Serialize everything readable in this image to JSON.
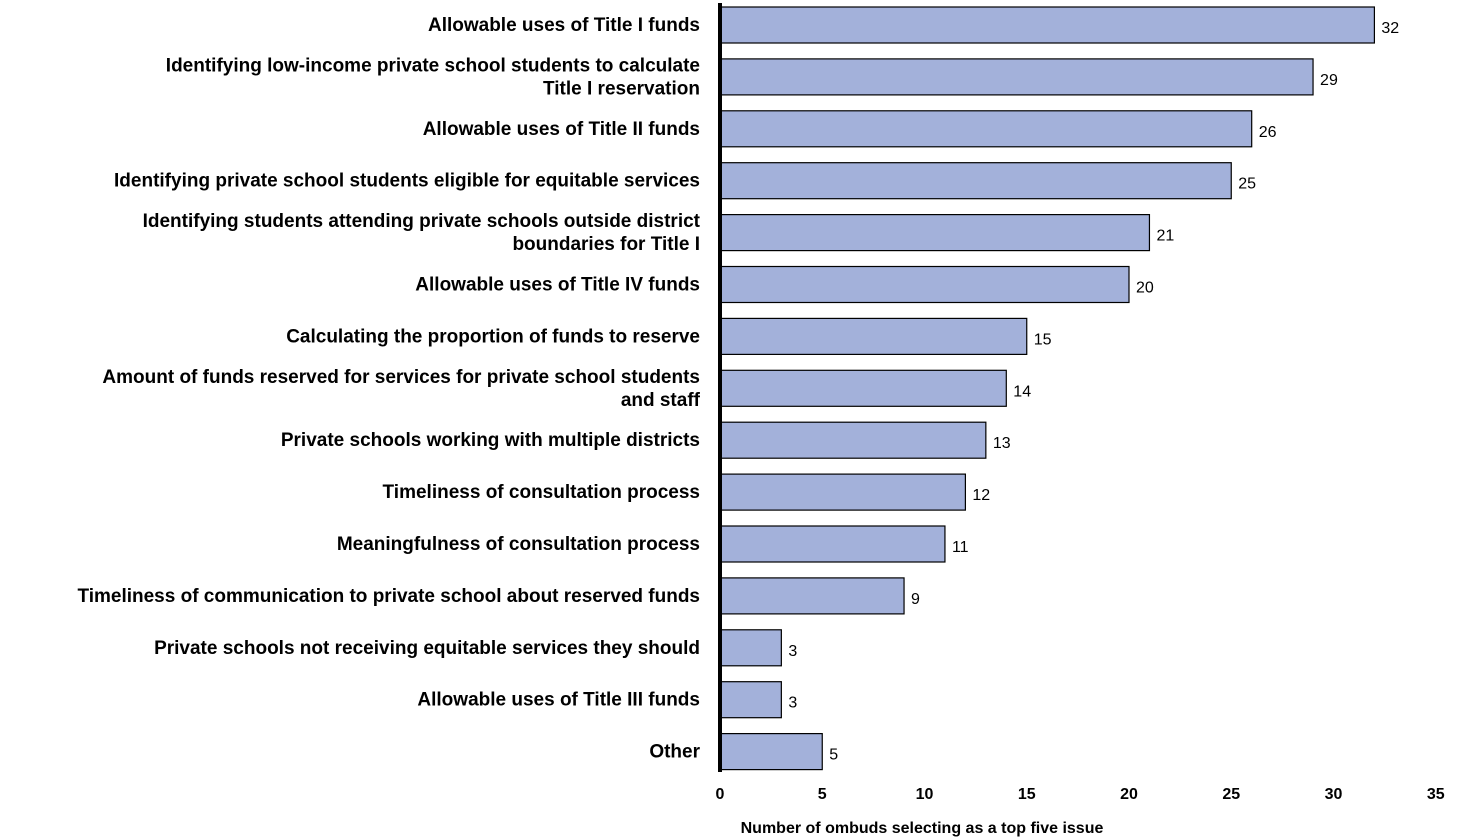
{
  "chart_data": {
    "type": "bar",
    "orientation": "horizontal",
    "title": "",
    "xlabel": "Number of ombuds selecting as a top five issue",
    "ylabel": "",
    "xlim": [
      0,
      35
    ],
    "x_ticks": [
      0,
      5,
      10,
      15,
      20,
      25,
      30,
      35
    ],
    "grid": false,
    "legend": "none",
    "bar_color": "#a3b1da",
    "bar_edge_color": "#000000",
    "categories": [
      [
        "Allowable uses of Title I funds"
      ],
      [
        "Identifying low-income private school students to calculate",
        "Title I reservation"
      ],
      [
        "Allowable uses of Title II funds"
      ],
      [
        "Identifying private school students eligible for equitable services"
      ],
      [
        "Identifying students attending private schools outside district",
        "boundaries for Title I"
      ],
      [
        "Allowable uses of Title IV funds"
      ],
      [
        "Calculating the proportion of funds to reserve"
      ],
      [
        "Amount of funds reserved for services for private school students",
        "and staff"
      ],
      [
        "Private schools working with multiple districts"
      ],
      [
        "Timeliness of consultation process"
      ],
      [
        "Meaningfulness of consultation process"
      ],
      [
        "Timeliness of communication to private school about reserved funds"
      ],
      [
        "Private schools not receiving equitable services they should"
      ],
      [
        "Allowable uses of Title III funds"
      ],
      [
        "Other"
      ]
    ],
    "values": [
      32,
      29,
      26,
      25,
      21,
      20,
      15,
      14,
      13,
      12,
      11,
      9,
      3,
      3,
      5
    ]
  }
}
